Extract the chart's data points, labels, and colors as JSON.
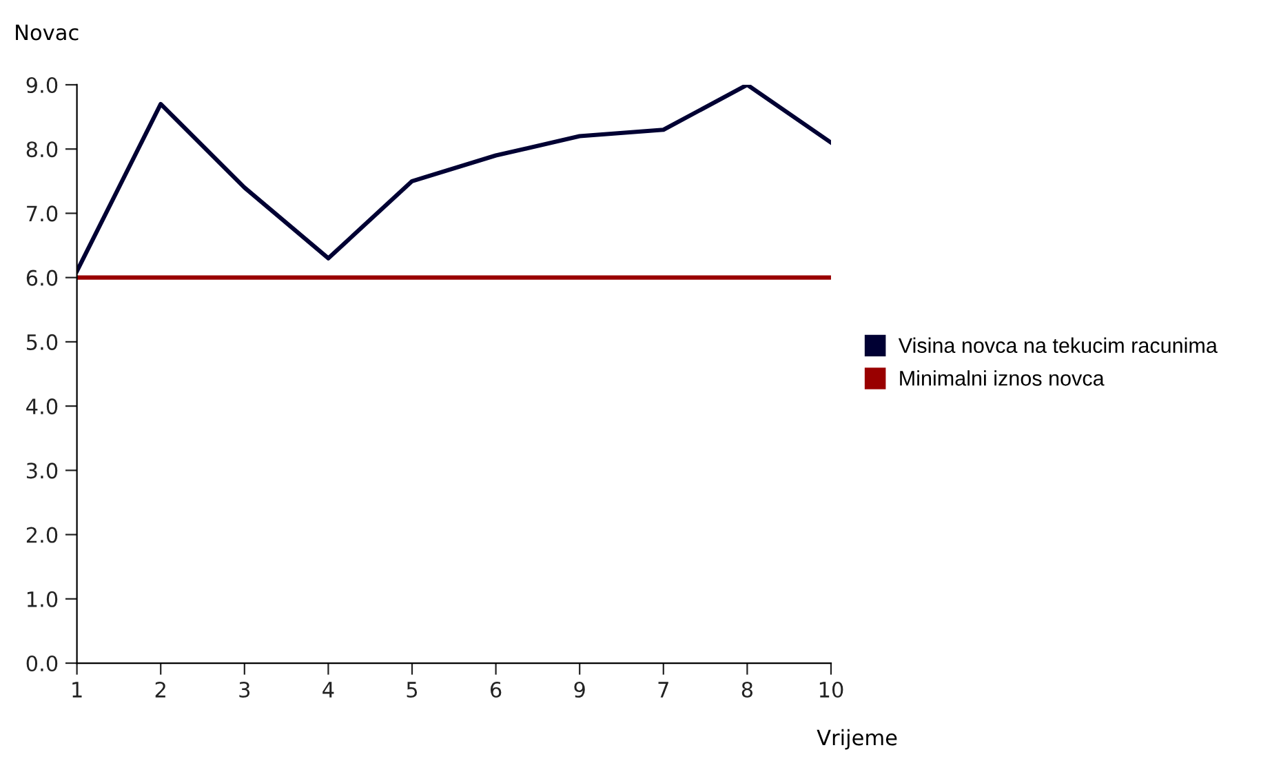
{
  "chart_data": {
    "type": "line",
    "xlabel": "Vrijeme",
    "ylabel": "Novac",
    "categories": [
      "1",
      "2",
      "3",
      "4",
      "5",
      "6",
      "9",
      "7",
      "8",
      "10"
    ],
    "series": [
      {
        "name": "Visina novca na tekucim racunima",
        "color": "#000033",
        "values": [
          6.1,
          8.7,
          7.4,
          6.3,
          7.5,
          7.9,
          8.2,
          8.3,
          9.0,
          8.1
        ]
      },
      {
        "name": "Minimalni iznos novca",
        "color": "#990000",
        "values": [
          6.0,
          6.0,
          6.0,
          6.0,
          6.0,
          6.0,
          6.0,
          6.0,
          6.0,
          6.0
        ]
      }
    ],
    "ylim": [
      0,
      9
    ],
    "yticks": [
      {
        "value": 0,
        "label": "0.0"
      },
      {
        "value": 1,
        "label": "1.0"
      },
      {
        "value": 2,
        "label": "2.0"
      },
      {
        "value": 3,
        "label": "3.0"
      },
      {
        "value": 4,
        "label": "4.0"
      },
      {
        "value": 5,
        "label": "5.0"
      },
      {
        "value": 6,
        "label": "6.0"
      },
      {
        "value": 7,
        "label": "7.0"
      },
      {
        "value": 8,
        "label": "8.0"
      },
      {
        "value": 9,
        "label": "9.0"
      }
    ],
    "grid": false,
    "legend": "right",
    "marker": "none",
    "line_style": "solid"
  }
}
